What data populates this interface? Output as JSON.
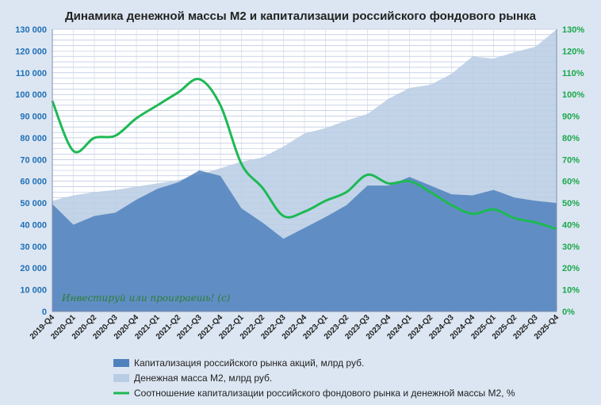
{
  "chart_data": {
    "type": "area",
    "title": "Динамика денежной массы М2 и капитализации российского фондового рынка",
    "categories": [
      "2019-Q4",
      "2020-Q1",
      "2020-Q2",
      "2020-Q3",
      "2020-Q4",
      "2021-Q1",
      "2021-Q2",
      "2021-Q3",
      "2021-Q4",
      "2022-Q1",
      "2022-Q2",
      "2022-Q3",
      "2022-Q4",
      "2023-Q1",
      "2023-Q2",
      "2023-Q3",
      "2023-Q4",
      "2024-Q1",
      "2024-Q2",
      "2024-Q3",
      "2024-Q4",
      "2025-Q1",
      "2025-Q2",
      "2025-Q3",
      "2025-Q4"
    ],
    "left_axis": {
      "min": 0,
      "max": 130000,
      "step": 10000,
      "tick_labels": [
        "0",
        "10 000",
        "20 000",
        "30 000",
        "40 000",
        "50 000",
        "60 000",
        "70 000",
        "80 000",
        "90 000",
        "100 000",
        "110 000",
        "120 000",
        "130 000"
      ]
    },
    "right_axis": {
      "min": 0,
      "max": 130,
      "step": 10,
      "tick_labels": [
        "0%",
        "10%",
        "20%",
        "30%",
        "40%",
        "50%",
        "60%",
        "70%",
        "80%",
        "90%",
        "100%",
        "110%",
        "120%",
        "130%"
      ]
    },
    "grid": true,
    "legend_position": "bottom",
    "series": [
      {
        "name": "Денежная масса М2, млрд руб.",
        "kind": "area",
        "axis": "left",
        "color": "#b8cce4",
        "values": [
          51000,
          53500,
          55000,
          56000,
          57500,
          59000,
          60500,
          63000,
          66000,
          69000,
          71000,
          76000,
          82000,
          84500,
          88000,
          91000,
          98000,
          103000,
          104500,
          109500,
          117500,
          116500,
          119500,
          122000,
          130000
        ]
      },
      {
        "name": "Капитализация российского рынка акций, млрд руб.",
        "kind": "area",
        "axis": "left",
        "color": "#4f81bd",
        "values": [
          49500,
          40000,
          44000,
          45500,
          51500,
          56500,
          59500,
          65000,
          62500,
          47500,
          41000,
          33500,
          38500,
          43500,
          49000,
          58000,
          58000,
          62000,
          58000,
          54000,
          53500,
          56000,
          52500,
          51000,
          50000
        ]
      },
      {
        "name": "Соотношение  капитализации российского фондового рынка и денежной массы М2, %",
        "kind": "line",
        "axis": "right",
        "color": "#1db954",
        "values": [
          97,
          74,
          80,
          81,
          89,
          95,
          101,
          107,
          95,
          68,
          57,
          44,
          46,
          51,
          55,
          63,
          59,
          60,
          55,
          49,
          45,
          47,
          43,
          41,
          38
        ]
      }
    ],
    "watermark": "Инвестируй или проиграешь! (с)"
  }
}
